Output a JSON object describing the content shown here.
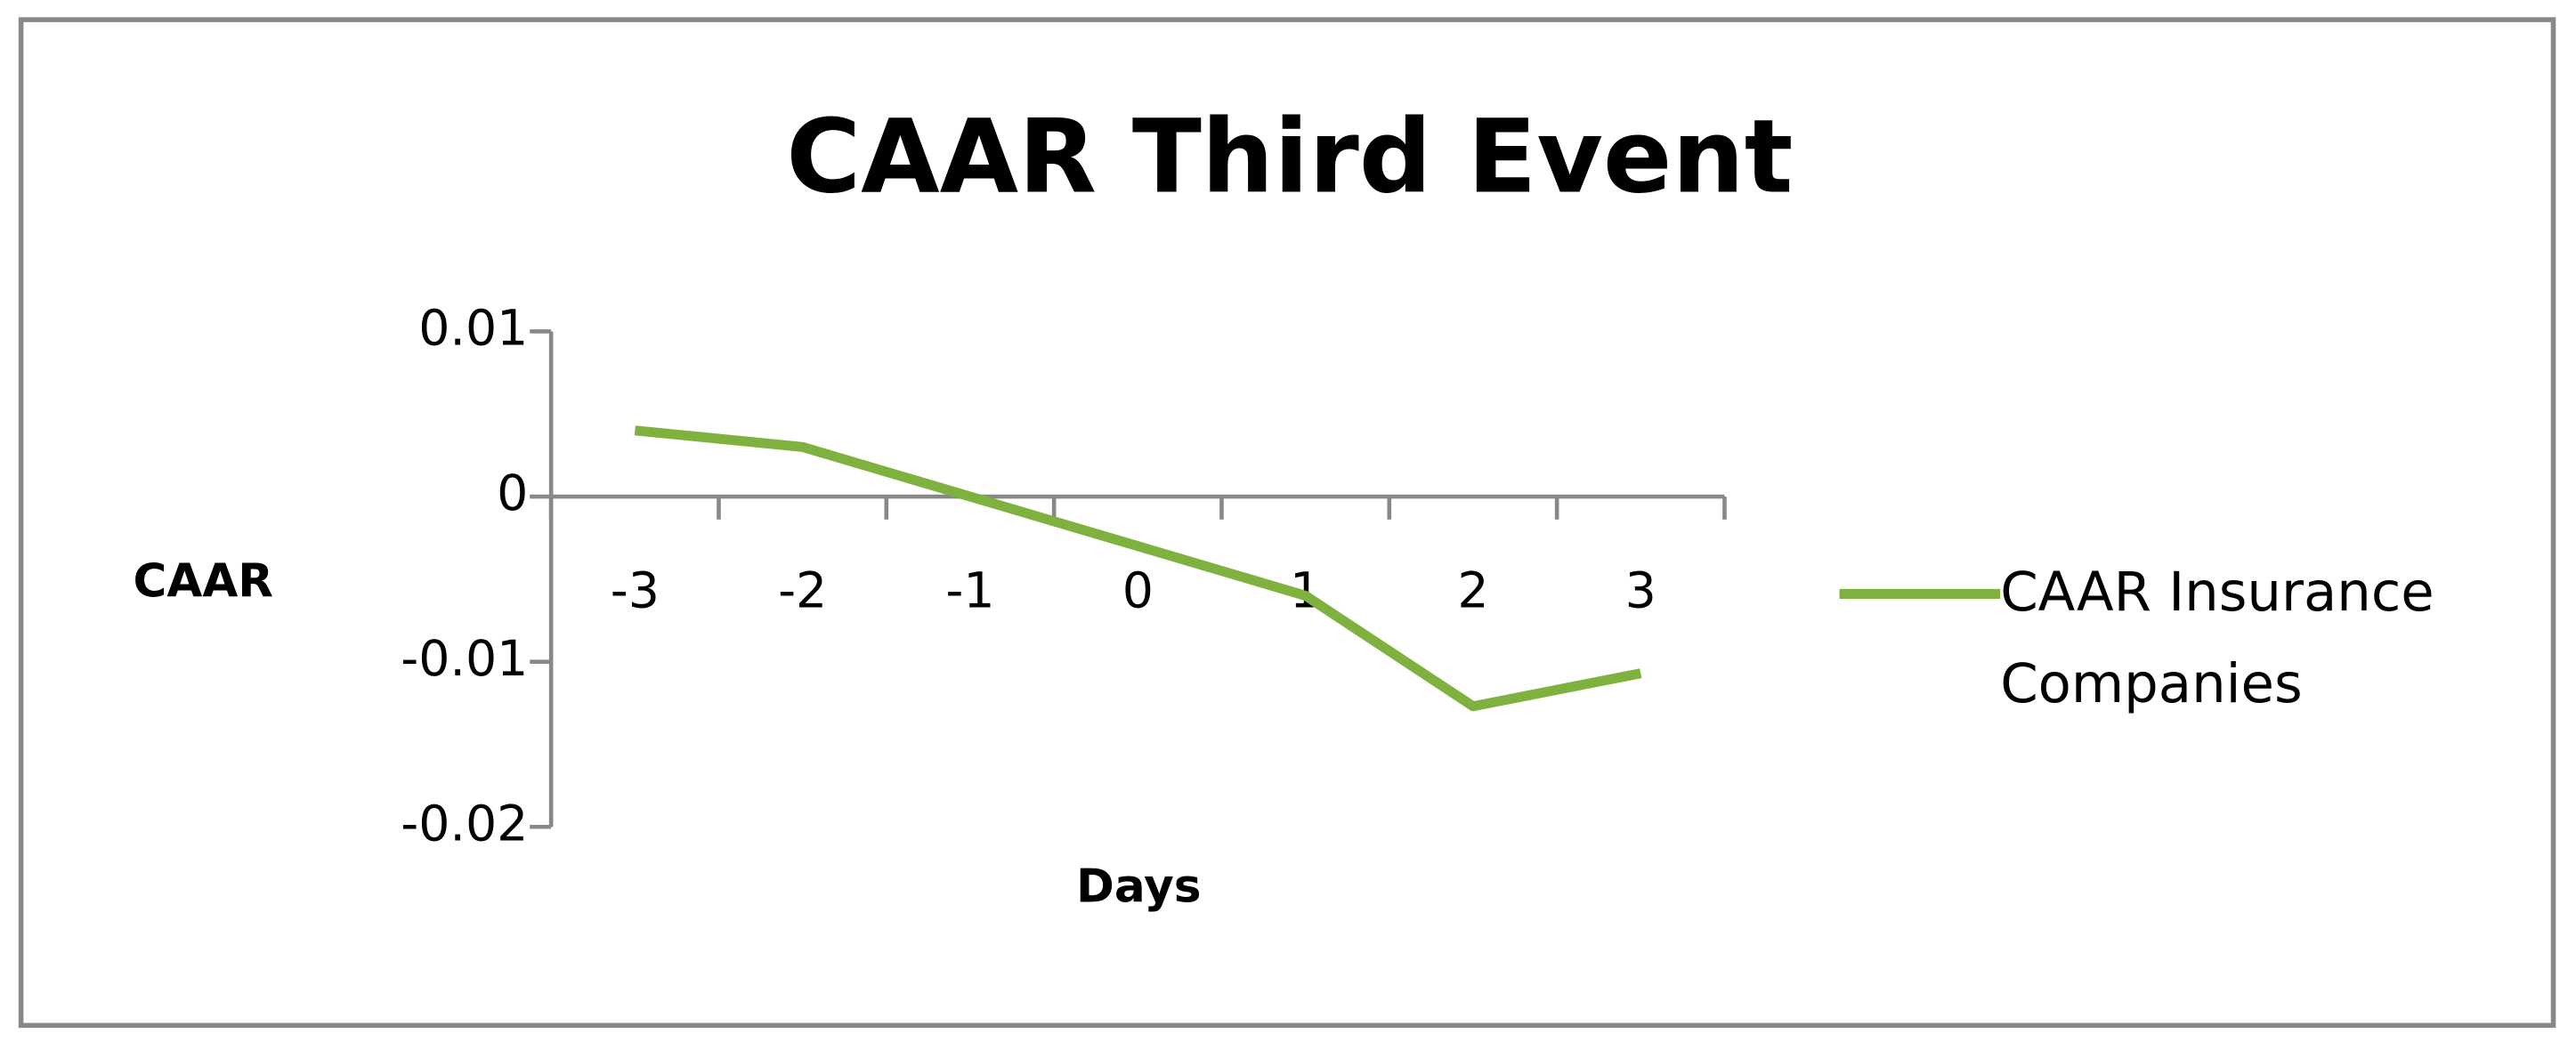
{
  "chart_data": {
    "type": "line",
    "title": "CAAR Third Event",
    "x_label": "Days",
    "y_label": "CAAR",
    "categories": [
      "-3",
      "-2",
      "-1",
      "0",
      "1",
      "2",
      "3"
    ],
    "series": [
      {
        "name": "CAAR Insurance Companies",
        "color": "#7fb13f",
        "values": [
          0.004,
          0.003,
          0.0,
          -0.003,
          -0.006,
          -0.0127,
          -0.0107
        ]
      }
    ],
    "ylim": [
      -0.02,
      0.01
    ],
    "yticks": [
      -0.02,
      -0.01,
      0,
      0.01
    ],
    "legend": "right"
  }
}
